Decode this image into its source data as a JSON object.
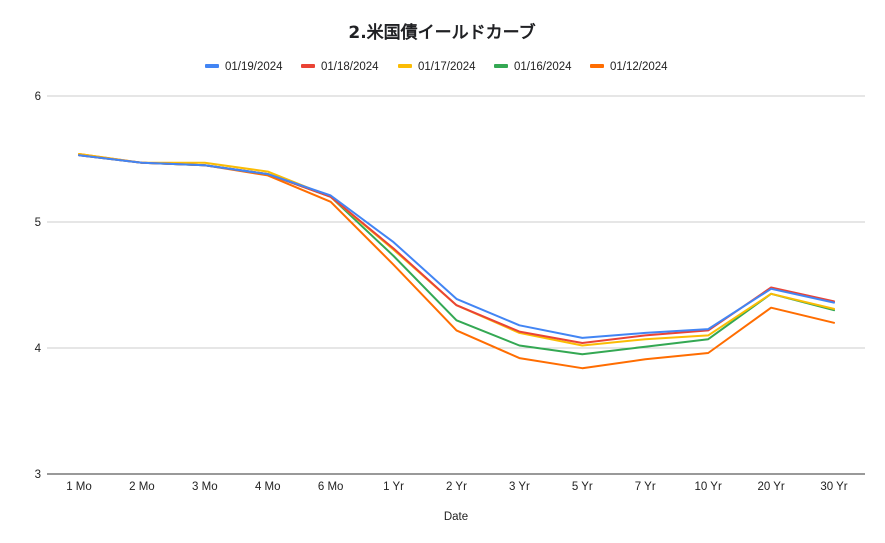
{
  "chart_data": {
    "type": "line",
    "title": "2.米国債イールドカーブ",
    "xlabel": "Date",
    "ylabel": "",
    "ylim": [
      3,
      6
    ],
    "yticks": [
      "3",
      "4",
      "5",
      "6"
    ],
    "grid": true,
    "legend_position": "top",
    "categories": [
      "1 Mo",
      "2 Mo",
      "3 Mo",
      "4 Mo",
      "6 Mo",
      "1 Yr",
      "2 Yr",
      "3 Yr",
      "5 Yr",
      "7 Yr",
      "10 Yr",
      "20 Yr",
      "30 Yr"
    ],
    "series": [
      {
        "name": "01/19/2024",
        "color": "#4285f4",
        "values": [
          5.53,
          5.47,
          5.45,
          5.38,
          5.21,
          4.84,
          4.39,
          4.18,
          4.08,
          4.12,
          4.15,
          4.47,
          4.36
        ]
      },
      {
        "name": "01/18/2024",
        "color": "#ea4335",
        "values": [
          5.53,
          5.47,
          5.45,
          5.38,
          5.2,
          4.79,
          4.34,
          4.13,
          4.04,
          4.1,
          4.14,
          4.48,
          4.37
        ]
      },
      {
        "name": "01/17/2024",
        "color": "#fbbc04",
        "values": [
          5.54,
          5.47,
          5.47,
          5.4,
          5.2,
          4.78,
          4.34,
          4.12,
          4.02,
          4.07,
          4.1,
          4.43,
          4.31
        ]
      },
      {
        "name": "01/16/2024",
        "color": "#34a853",
        "values": [
          5.53,
          5.47,
          5.45,
          5.38,
          5.2,
          4.73,
          4.22,
          4.02,
          3.95,
          4.01,
          4.07,
          4.43,
          4.3
        ]
      },
      {
        "name": "01/12/2024",
        "color": "#ff6d01",
        "values": [
          5.54,
          5.47,
          5.45,
          5.37,
          5.16,
          4.66,
          4.14,
          3.92,
          3.84,
          3.91,
          3.96,
          4.32,
          4.2
        ]
      }
    ]
  }
}
